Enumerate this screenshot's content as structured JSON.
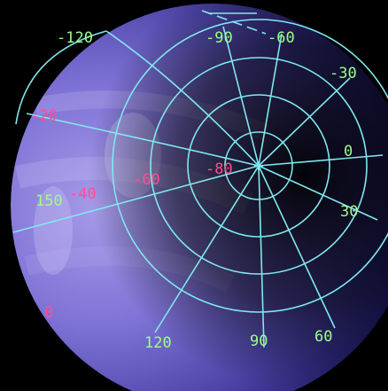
{
  "colors": {
    "background": "#000000",
    "grid": "#7fe8ef",
    "longitude_label": "#9cff8a",
    "latitude_label": "#ff4f8f",
    "planet_light": "#9b8ee6",
    "planet_mid": "#5f55bd",
    "planet_dark": "#10103a"
  },
  "longitude_labels": {
    "lon_m120": "-120",
    "lon_m90": "-90",
    "lon_m60": "-60",
    "lon_m30": "-30",
    "lon_0": "0",
    "lon_30": "30",
    "lon_60": "60",
    "lon_90": "90",
    "lon_120": "120",
    "lon_150": "150"
  },
  "latitude_labels": {
    "lat_m20": "-20",
    "lat_m40": "-40",
    "lat_m60": "-60",
    "lat_m80": "-80",
    "lat_0": "0"
  }
}
